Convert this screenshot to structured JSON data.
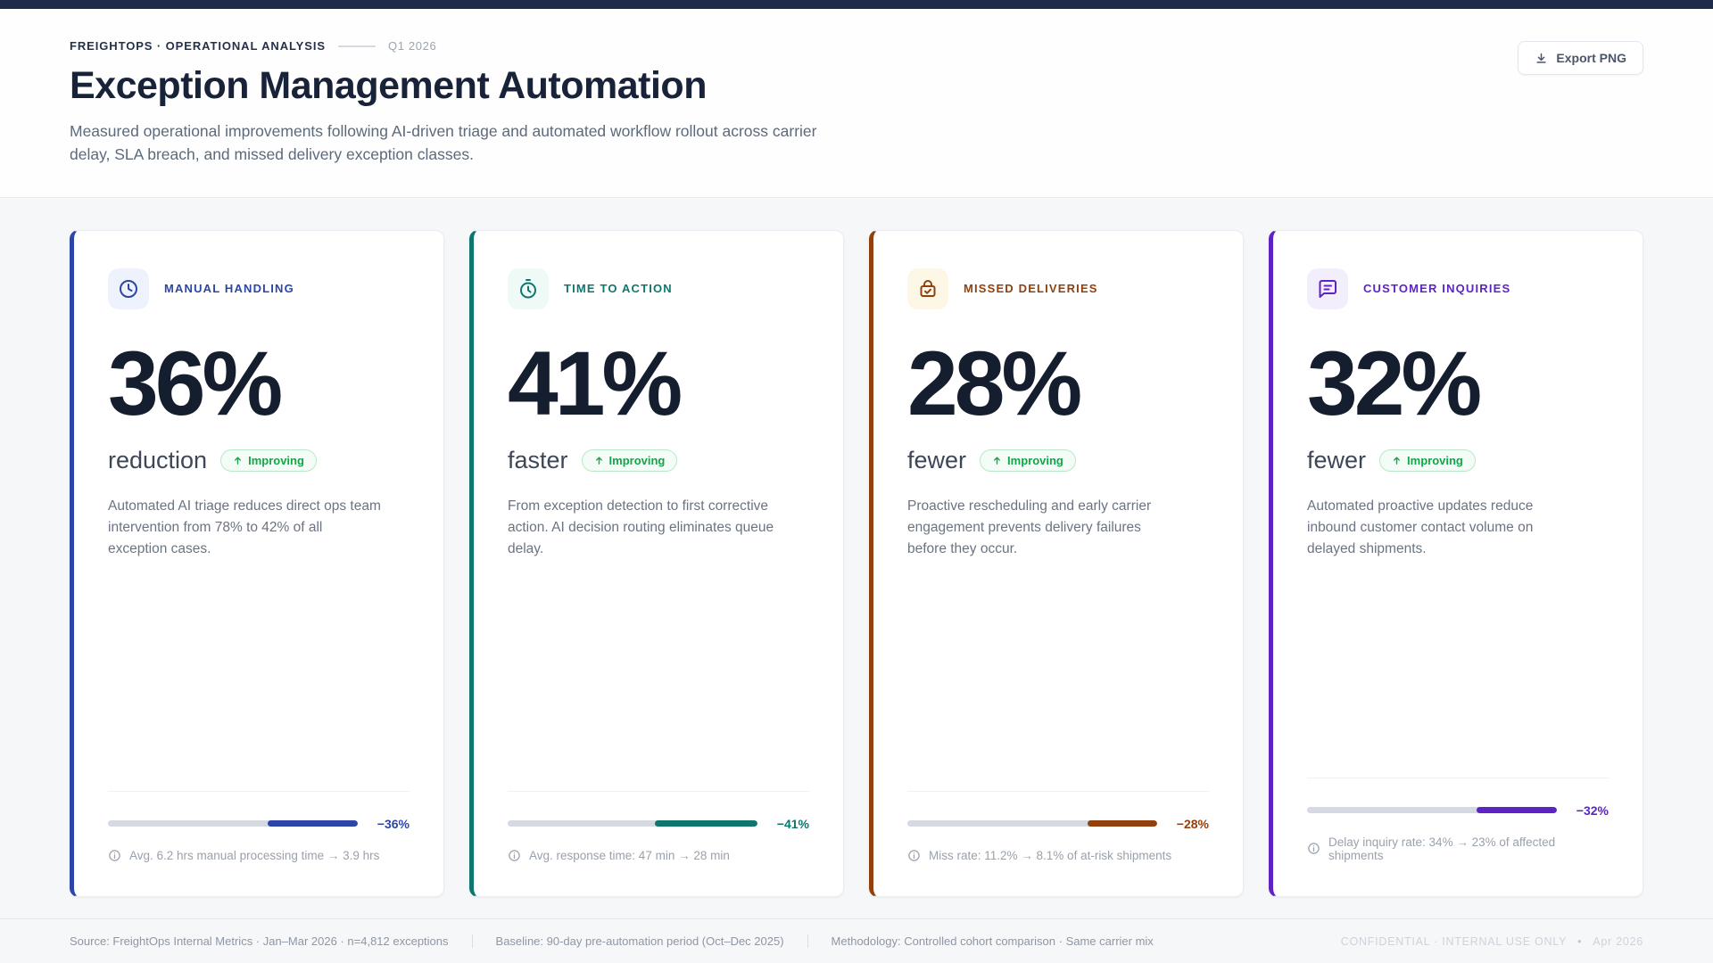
{
  "header": {
    "eyebrow": "FREIGHTOPS · OPERATIONAL ANALYSIS",
    "period": "Q1 2026",
    "title": "Exception Management Automation",
    "subtitle": "Measured operational improvements following AI-driven triage and automated workflow rollout across carrier delay, SLA breach, and missed delivery exception classes.",
    "export_label": "Export PNG"
  },
  "colors": {
    "topbar": "#1e2a4a",
    "badge_green": "#17a34a",
    "track_gray": "#d5dae2"
  },
  "cards": [
    {
      "label": "MANUAL HANDLING",
      "icon": "clock-icon",
      "accent": "#2b46a6",
      "tile_bg": "#eef2fc",
      "value": "36%",
      "unit": "reduction",
      "badge": "Improving",
      "description": "Automated AI triage reduces direct ops team intervention from 78% to 42% of all exception cases.",
      "bar_percent": 36,
      "bar_label": "−36%",
      "footnote": "Avg. 6.2 hrs manual processing time → 3.9 hrs"
    },
    {
      "label": "TIME TO ACTION",
      "icon": "timer-icon",
      "accent": "#0f766e",
      "tile_bg": "#effaf7",
      "value": "41%",
      "unit": "faster",
      "badge": "Improving",
      "description": "From exception detection to first corrective action. AI decision routing eliminates queue delay.",
      "bar_percent": 41,
      "bar_label": "−41%",
      "footnote": "Avg. response time: 47 min → 28 min"
    },
    {
      "label": "MISSED DELIVERIES",
      "icon": "package-check-icon",
      "accent": "#92400e",
      "tile_bg": "#fdf8e6",
      "value": "28%",
      "unit": "fewer",
      "badge": "Improving",
      "description": "Proactive rescheduling and early carrier engagement prevents delivery failures before they occur.",
      "bar_percent": 28,
      "bar_label": "−28%",
      "footnote": "Miss rate: 11.2% → 8.1% of at-risk shipments"
    },
    {
      "label": "CUSTOMER INQUIRIES",
      "icon": "message-square-icon",
      "accent": "#5e23c4",
      "tile_bg": "#f3eefc",
      "value": "32%",
      "unit": "fewer",
      "badge": "Improving",
      "description": "Automated proactive updates reduce inbound customer contact volume on delayed shipments.",
      "bar_percent": 32,
      "bar_label": "−32%",
      "footnote": "Delay inquiry rate: 34% → 23% of affected shipments"
    }
  ],
  "footer": {
    "source": "Source: FreightOps Internal Metrics · Jan–Mar 2026 · n=4,812 exceptions",
    "baseline": "Baseline: 90-day pre-automation period (Oct–Dec 2025)",
    "methodology": "Methodology: Controlled cohort comparison · Same carrier mix",
    "confidential": "CONFIDENTIAL · INTERNAL USE ONLY",
    "bullet": "•",
    "date": "Apr 2026"
  }
}
